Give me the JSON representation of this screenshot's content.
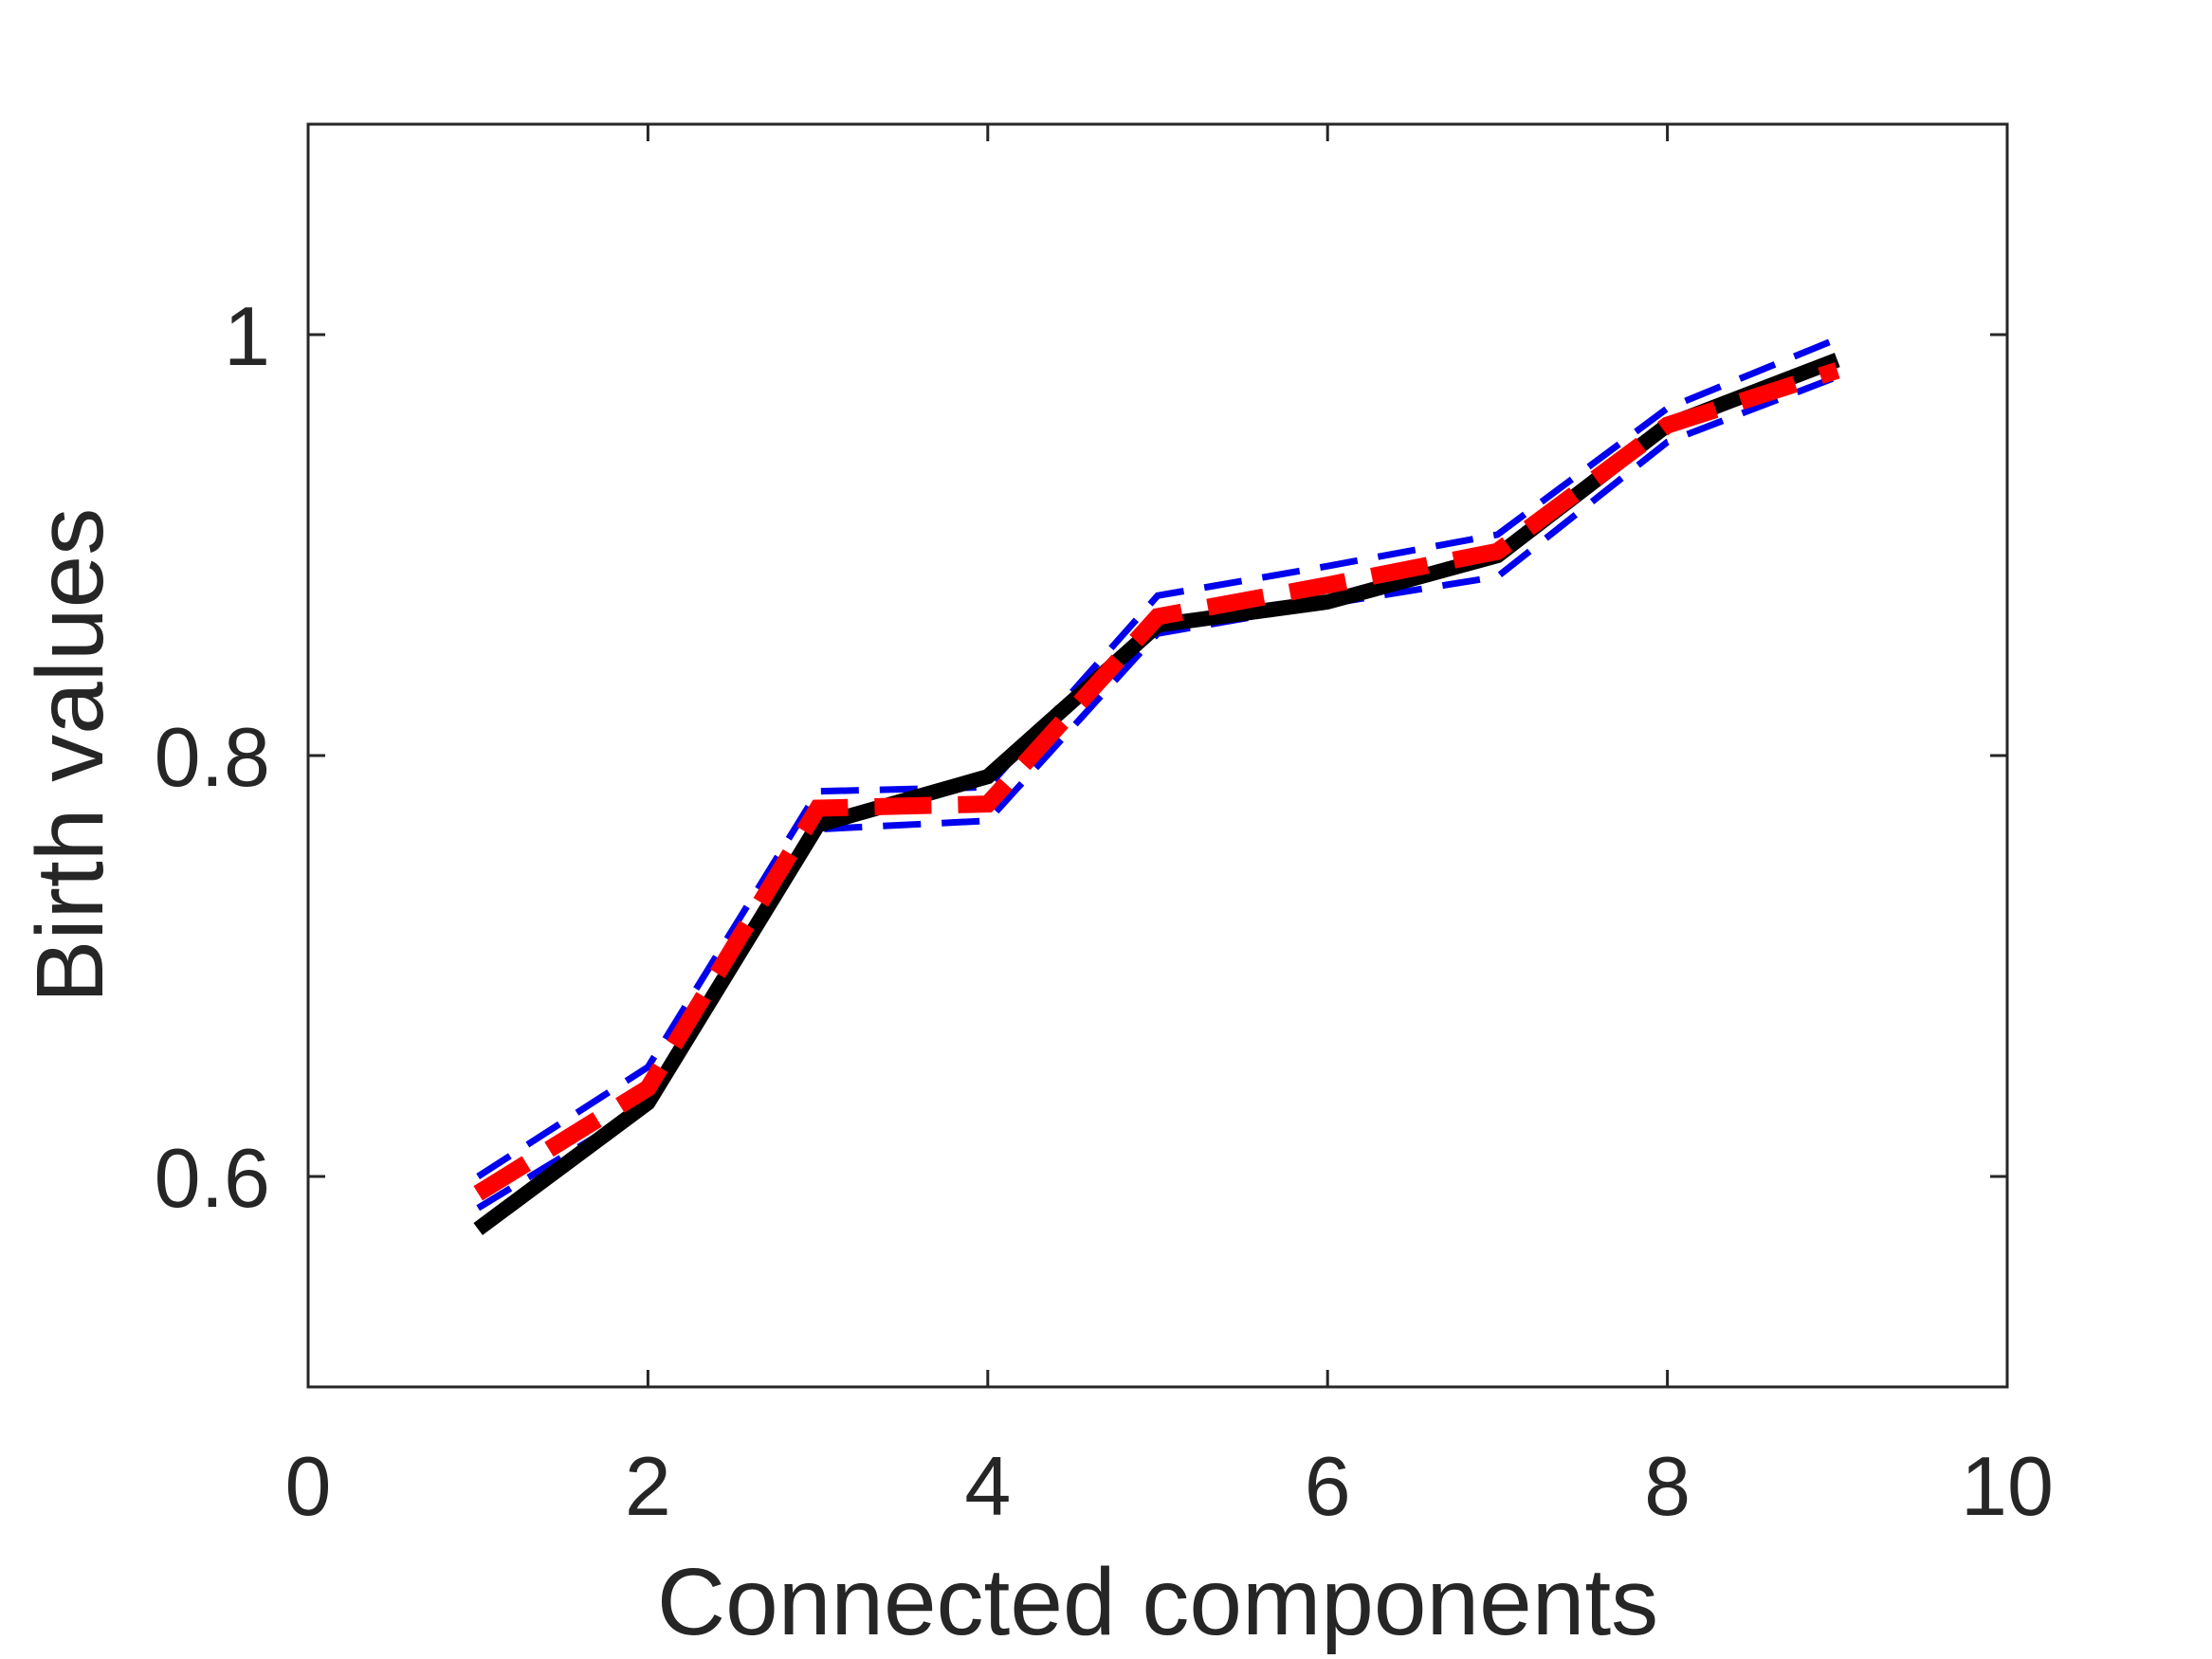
{
  "chart_data": {
    "type": "line",
    "xlabel": "Connected components",
    "ylabel": "Birth values",
    "xlim": [
      0,
      10
    ],
    "ylim": [
      0.5,
      1.1
    ],
    "xticks": [
      0,
      2,
      4,
      6,
      8,
      10
    ],
    "xtick_labels": [
      "0",
      "2",
      "4",
      "6",
      "8",
      "10"
    ],
    "yticks": [
      0.6,
      0.8,
      1.0
    ],
    "ytick_labels": [
      "0.6",
      "0.8",
      "1"
    ],
    "grid": false,
    "legend": "none",
    "x": [
      1,
      2,
      3,
      4,
      5,
      6,
      7,
      8,
      9
    ],
    "series": [
      {
        "color": "#000000",
        "style": "solid",
        "values": [
          0.575,
          0.635,
          0.767,
          0.79,
          0.862,
          0.873,
          0.895,
          0.957,
          0.988
        ]
      },
      {
        "color": "#ff0000",
        "style": "dashed",
        "values": [
          0.592,
          0.642,
          0.775,
          0.777,
          0.866,
          0.881,
          0.897,
          0.957,
          0.983
        ]
      },
      {
        "color": "#0000ee",
        "style": "dashed",
        "values": [
          0.6,
          0.652,
          0.783,
          0.785,
          0.876,
          0.89,
          0.905,
          0.965,
          0.998
        ]
      },
      {
        "color": "#0000ee",
        "style": "dashed",
        "values": [
          0.585,
          0.634,
          0.765,
          0.769,
          0.858,
          0.872,
          0.885,
          0.949,
          0.98
        ]
      }
    ]
  }
}
